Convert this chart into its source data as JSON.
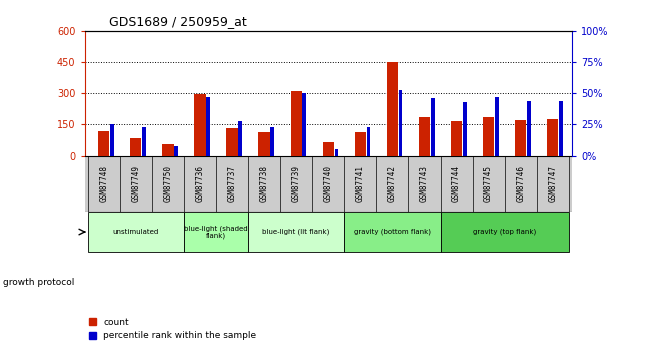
{
  "title": "GDS1689 / 250959_at",
  "samples": [
    "GSM87748",
    "GSM87749",
    "GSM87750",
    "GSM87736",
    "GSM87737",
    "GSM87738",
    "GSM87739",
    "GSM87740",
    "GSM87741",
    "GSM87742",
    "GSM87743",
    "GSM87744",
    "GSM87745",
    "GSM87746",
    "GSM87747"
  ],
  "counts": [
    120,
    85,
    55,
    295,
    135,
    115,
    310,
    65,
    115,
    450,
    185,
    165,
    185,
    170,
    175
  ],
  "percentiles": [
    25,
    23,
    8,
    47,
    28,
    23,
    50,
    5,
    23,
    53,
    46,
    43,
    47,
    44,
    44
  ],
  "groups": [
    {
      "label": "unstimulated",
      "start": 0,
      "end": 3,
      "color": "#ccffcc"
    },
    {
      "label": "blue-light (shaded\nflank)",
      "start": 3,
      "end": 5,
      "color": "#aaffaa"
    },
    {
      "label": "blue-light (lit flank)",
      "start": 5,
      "end": 8,
      "color": "#ccffcc"
    },
    {
      "label": "gravity (bottom flank)",
      "start": 8,
      "end": 11,
      "color": "#88ee88"
    },
    {
      "label": "gravity (top flank)",
      "start": 11,
      "end": 15,
      "color": "#55cc55"
    }
  ],
  "ylim_left": [
    0,
    600
  ],
  "ylim_right": [
    0,
    100
  ],
  "yticks_left": [
    0,
    150,
    300,
    450,
    600
  ],
  "yticks_right": [
    0,
    25,
    50,
    75,
    100
  ],
  "bar_color_red": "#cc2200",
  "bar_color_blue": "#0000cc",
  "chart_bg": "#ffffff",
  "xtick_bg": "#cccccc"
}
